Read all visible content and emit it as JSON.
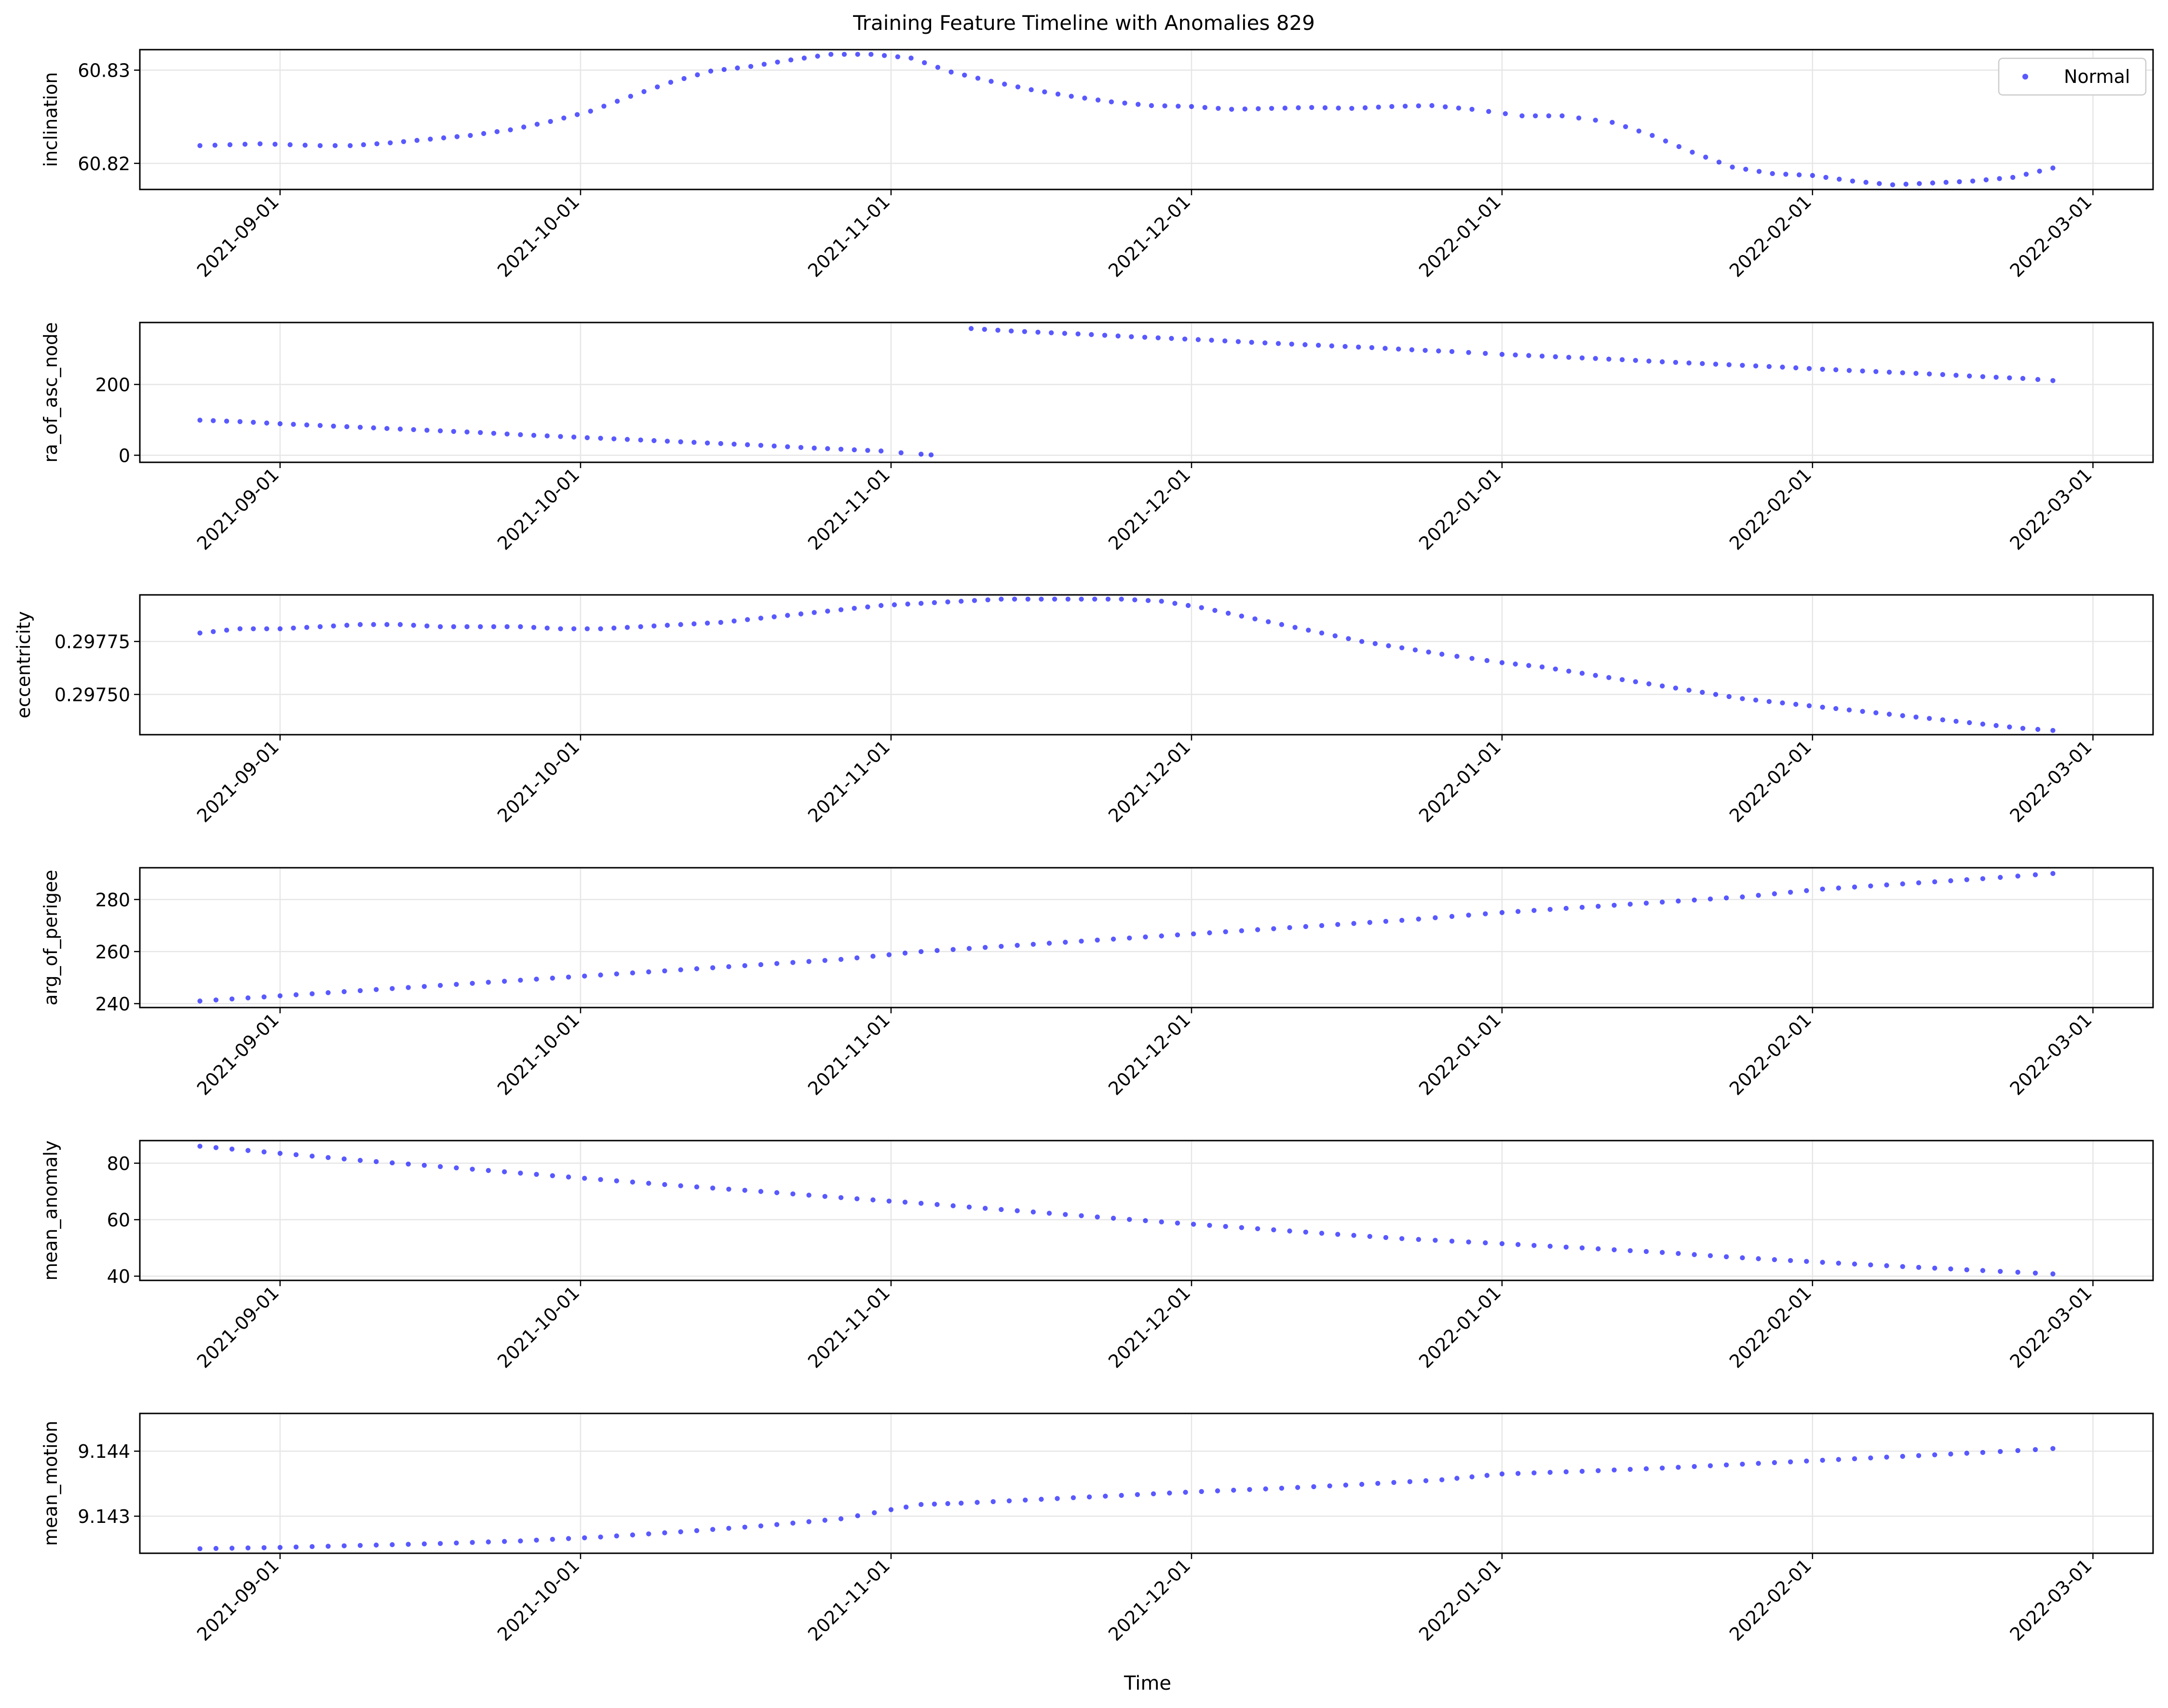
{
  "figure": {
    "title": "Training Feature Timeline with Anomalies 829",
    "xlabel": "Time",
    "legend_label": "Normal",
    "legend_position": "upper-right of first panel",
    "point_color": "#0000ff",
    "grid": true
  },
  "chart_data": [
    {
      "type": "scatter",
      "ylabel": "inclination",
      "xlim": [
        "2021-08-18",
        "2022-03-07"
      ],
      "ylim": [
        60.8172,
        60.8322
      ],
      "x_ticks": [
        "2021-09-01",
        "2021-10-01",
        "2021-11-01",
        "2021-12-01",
        "2022-01-01",
        "2022-02-01",
        "2022-03-01"
      ],
      "y_ticks": [
        60.82,
        60.83
      ],
      "y_tick_labels": [
        "60.82",
        "60.83"
      ],
      "series": [
        {
          "name": "Normal",
          "x": [
            "2021-08-24",
            "2021-08-27",
            "2021-08-30",
            "2021-09-02",
            "2021-09-05",
            "2021-09-08",
            "2021-09-12",
            "2021-09-16",
            "2021-09-20",
            "2021-09-24",
            "2021-09-28",
            "2021-10-02",
            "2021-10-06",
            "2021-10-10",
            "2021-10-14",
            "2021-10-18",
            "2021-10-22",
            "2021-10-26",
            "2021-10-30",
            "2021-11-03",
            "2021-11-07",
            "2021-11-11",
            "2021-11-15",
            "2021-11-19",
            "2021-11-23",
            "2021-11-27",
            "2021-12-01",
            "2021-12-05",
            "2021-12-09",
            "2021-12-13",
            "2021-12-17",
            "2021-12-21",
            "2021-12-25",
            "2021-12-29",
            "2022-01-03",
            "2022-01-07",
            "2022-01-12",
            "2022-01-16",
            "2022-01-20",
            "2022-01-24",
            "2022-01-28",
            "2022-02-01",
            "2022-02-05",
            "2022-02-09",
            "2022-02-13",
            "2022-02-17",
            "2022-02-21",
            "2022-02-25"
          ],
          "y": [
            60.8219,
            60.822,
            60.8221,
            60.822,
            60.8219,
            60.8219,
            60.8222,
            60.8226,
            60.823,
            60.8236,
            60.8245,
            60.8256,
            60.8272,
            60.8287,
            60.8299,
            60.8304,
            60.8311,
            60.8317,
            60.8317,
            60.8313,
            60.8298,
            60.8288,
            60.8279,
            60.8272,
            60.8266,
            60.8262,
            60.8261,
            60.8258,
            60.8259,
            60.826,
            60.8259,
            60.8261,
            60.8262,
            60.8258,
            60.8251,
            60.8251,
            60.8244,
            60.823,
            60.8212,
            60.8196,
            60.8189,
            60.8187,
            60.8181,
            60.8177,
            60.8179,
            60.8181,
            60.8185,
            60.8195
          ]
        }
      ]
    },
    {
      "type": "scatter",
      "ylabel": "ra_of_asc_node",
      "xlim": [
        "2021-08-18",
        "2022-03-07"
      ],
      "ylim": [
        -20,
        375
      ],
      "x_ticks": [
        "2021-09-01",
        "2021-10-01",
        "2021-11-01",
        "2021-12-01",
        "2022-01-01",
        "2022-02-01",
        "2022-03-01"
      ],
      "y_ticks": [
        0,
        200
      ],
      "y_tick_labels": [
        "0",
        "200"
      ],
      "series": [
        {
          "name": "Normal",
          "x": [
            "2021-08-24",
            "2021-08-28",
            "2021-09-01",
            "2021-09-05",
            "2021-09-09",
            "2021-09-13",
            "2021-09-17",
            "2021-09-21",
            "2021-09-25",
            "2021-09-29",
            "2021-10-03",
            "2021-10-07",
            "2021-10-11",
            "2021-10-15",
            "2021-10-19",
            "2021-10-23",
            "2021-10-27",
            "2021-10-31",
            "2021-11-02",
            "2021-11-04",
            "2021-11-05",
            "2021-11-09",
            "2021-11-13",
            "2021-11-17",
            "2021-11-21",
            "2021-11-25",
            "2021-11-29",
            "2021-12-03",
            "2021-12-07",
            "2021-12-11",
            "2021-12-15",
            "2021-12-19",
            "2021-12-23",
            "2021-12-27",
            "2022-01-01",
            "2022-01-05",
            "2022-01-09",
            "2022-01-13",
            "2022-01-17",
            "2022-01-21",
            "2022-01-25",
            "2022-01-29",
            "2022-02-02",
            "2022-02-06",
            "2022-02-10",
            "2022-02-14",
            "2022-02-18",
            "2022-02-22",
            "2022-02-25"
          ],
          "y": [
            99,
            95,
            89,
            84,
            79,
            74,
            69,
            64,
            58,
            53,
            48,
            43,
            38,
            33,
            28,
            22,
            17,
            12,
            7,
            3,
            1,
            358,
            351,
            346,
            341,
            335,
            330,
            325,
            319,
            314,
            309,
            304,
            298,
            293,
            285,
            280,
            275,
            270,
            264,
            259,
            254,
            249,
            243,
            238,
            233,
            228,
            222,
            217,
            211
          ]
        }
      ]
    },
    {
      "type": "scatter",
      "ylabel": "eccentricity",
      "xlim": [
        "2021-08-18",
        "2022-03-07"
      ],
      "ylim": [
        0.29731,
        0.29797
      ],
      "x_ticks": [
        "2021-09-01",
        "2021-10-01",
        "2021-11-01",
        "2021-12-01",
        "2022-01-01",
        "2022-02-01",
        "2022-03-01"
      ],
      "y_ticks": [
        0.2975,
        0.29775
      ],
      "y_tick_labels": [
        "0.29750",
        "0.29775"
      ],
      "series": [
        {
          "name": "Normal",
          "x": [
            "2021-08-24",
            "2021-08-28",
            "2021-09-01",
            "2021-09-05",
            "2021-09-09",
            "2021-09-13",
            "2021-09-17",
            "2021-09-21",
            "2021-09-25",
            "2021-09-29",
            "2021-10-03",
            "2021-10-07",
            "2021-10-11",
            "2021-10-15",
            "2021-10-19",
            "2021-10-23",
            "2021-10-27",
            "2021-10-31",
            "2021-11-04",
            "2021-11-08",
            "2021-11-12",
            "2021-11-16",
            "2021-11-20",
            "2021-11-24",
            "2021-11-28",
            "2021-12-02",
            "2021-12-06",
            "2021-12-10",
            "2021-12-14",
            "2021-12-18",
            "2021-12-22",
            "2021-12-26",
            "2022-01-01",
            "2022-01-05",
            "2022-01-09",
            "2022-01-13",
            "2022-01-17",
            "2022-01-21",
            "2022-01-25",
            "2022-01-29",
            "2022-02-02",
            "2022-02-06",
            "2022-02-10",
            "2022-02-14",
            "2022-02-18",
            "2022-02-22",
            "2022-02-25"
          ],
          "y": [
            0.29779,
            0.29781,
            0.29781,
            0.29782,
            0.29783,
            0.29783,
            0.29782,
            0.29782,
            0.29782,
            0.29781,
            0.29781,
            0.29782,
            0.29783,
            0.29784,
            0.29786,
            0.29788,
            0.2979,
            0.29792,
            0.29793,
            0.29794,
            0.29795,
            0.29795,
            0.29795,
            0.29795,
            0.29794,
            0.29791,
            0.29787,
            0.29783,
            0.29779,
            0.29775,
            0.29772,
            0.29769,
            0.29765,
            0.29763,
            0.2976,
            0.29757,
            0.29754,
            0.29751,
            0.29748,
            0.29746,
            0.29744,
            0.29742,
            0.2974,
            0.29738,
            0.29736,
            0.29734,
            0.29733
          ]
        }
      ]
    },
    {
      "type": "scatter",
      "ylabel": "arg_of_perigee",
      "xlim": [
        "2021-08-18",
        "2022-03-07"
      ],
      "ylim": [
        238.5,
        292.2
      ],
      "x_ticks": [
        "2021-09-01",
        "2021-10-01",
        "2021-11-01",
        "2021-12-01",
        "2022-01-01",
        "2022-02-01",
        "2022-03-01"
      ],
      "y_ticks": [
        240,
        260,
        280
      ],
      "y_tick_labels": [
        "240",
        "260",
        "280"
      ],
      "series": [
        {
          "name": "Normal",
          "x": [
            "2021-08-24",
            "2021-09-01",
            "2021-09-09",
            "2021-09-17",
            "2021-09-25",
            "2021-10-03",
            "2021-10-11",
            "2021-10-19",
            "2021-10-27",
            "2021-11-04",
            "2021-11-12",
            "2021-11-20",
            "2021-11-28",
            "2021-12-06",
            "2021-12-14",
            "2021-12-22",
            "2022-01-01",
            "2022-01-09",
            "2022-01-17",
            "2022-01-25",
            "2022-02-02",
            "2022-02-10",
            "2022-02-18",
            "2022-02-25"
          ],
          "y": [
            241,
            243,
            245,
            247,
            249,
            251,
            253,
            255,
            257,
            260,
            262,
            264,
            266,
            268,
            270,
            272,
            275,
            277,
            279,
            281,
            284,
            286,
            288,
            290
          ]
        }
      ]
    },
    {
      "type": "scatter",
      "ylabel": "mean_anomaly",
      "xlim": [
        "2021-08-18",
        "2022-03-07"
      ],
      "ylim": [
        38.5,
        88
      ],
      "x_ticks": [
        "2021-09-01",
        "2021-10-01",
        "2021-11-01",
        "2021-12-01",
        "2022-01-01",
        "2022-02-01",
        "2022-03-01"
      ],
      "y_ticks": [
        40,
        60,
        80
      ],
      "y_tick_labels": [
        "40",
        "60",
        "80"
      ],
      "series": [
        {
          "name": "Normal",
          "x": [
            "2021-08-24",
            "2021-09-01",
            "2021-09-09",
            "2021-09-17",
            "2021-09-25",
            "2021-10-03",
            "2021-10-11",
            "2021-10-19",
            "2021-10-27",
            "2021-11-04",
            "2021-11-12",
            "2021-11-20",
            "2021-11-28",
            "2021-12-06",
            "2021-12-14",
            "2021-12-22",
            "2022-01-01",
            "2022-01-09",
            "2022-01-17",
            "2022-01-25",
            "2022-02-02",
            "2022-02-10",
            "2022-02-18",
            "2022-02-25"
          ],
          "y": [
            86,
            83.5,
            81,
            78.8,
            76.5,
            74.2,
            72,
            70,
            67.8,
            65.8,
            63.6,
            61.4,
            59.2,
            57.2,
            55.2,
            53.3,
            51.5,
            50,
            48.4,
            46.5,
            44.9,
            43.4,
            42,
            40.8
          ]
        }
      ]
    },
    {
      "type": "scatter",
      "ylabel": "mean_motion",
      "xlim": [
        "2021-08-18",
        "2022-03-07"
      ],
      "ylim": [
        9.14243,
        9.14458
      ],
      "x_ticks": [
        "2021-09-01",
        "2021-10-01",
        "2021-11-01",
        "2021-12-01",
        "2022-01-01",
        "2022-02-01",
        "2022-03-01"
      ],
      "y_ticks": [
        9.143,
        9.144
      ],
      "y_tick_labels": [
        "9.143",
        "9.144"
      ],
      "series": [
        {
          "name": "Normal",
          "x": [
            "2021-08-24",
            "2021-09-01",
            "2021-09-09",
            "2021-09-17",
            "2021-09-25",
            "2021-10-03",
            "2021-10-11",
            "2021-10-19",
            "2021-10-27",
            "2021-11-01",
            "2021-11-04",
            "2021-11-08",
            "2021-11-16",
            "2021-11-24",
            "2021-12-02",
            "2021-12-10",
            "2021-12-18",
            "2021-12-26",
            "2022-01-01",
            "2022-01-09",
            "2022-01-17",
            "2022-01-25",
            "2022-02-02",
            "2022-02-10",
            "2022-02-18",
            "2022-02-25"
          ],
          "y": [
            9.1425,
            9.14252,
            9.14255,
            9.14258,
            9.14262,
            9.14268,
            9.14276,
            9.14285,
            9.14296,
            9.1431,
            9.14318,
            9.1432,
            9.14326,
            9.14332,
            9.14338,
            9.14343,
            9.14349,
            9.14356,
            9.14365,
            9.14369,
            9.14374,
            9.1438,
            9.14386,
            9.14392,
            9.14398,
            9.14404
          ]
        }
      ]
    }
  ]
}
